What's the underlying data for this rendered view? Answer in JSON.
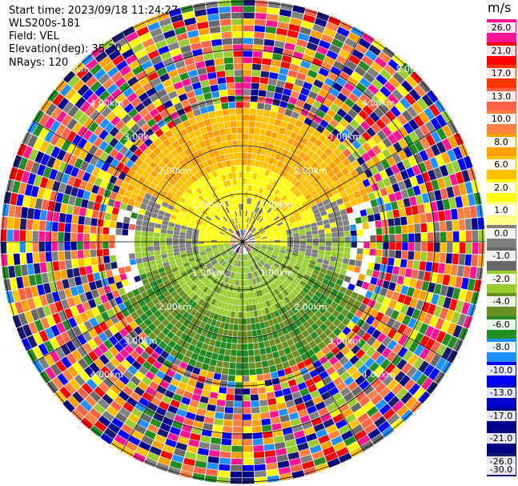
{
  "header": {
    "start_time": "Start time: 2023/09/18 11:24:27",
    "instrument": "WLS200s-181",
    "field": "Field: VEL",
    "elevation": "Elevation(deg): 35.30",
    "nrays": "NRays: 120"
  },
  "colorbar": {
    "unit": "m/s",
    "ticks": [
      "26.0",
      "21.0",
      "17.0",
      "13.0",
      "10.0",
      "8.0",
      "6.0",
      "2.0",
      "1.0",
      "0.0",
      "-1.0",
      "-2.0",
      "-4.0",
      "-6.0",
      "-8.0",
      "-10.0",
      "-13.0",
      "-17.0",
      "-21.0",
      "-26.0",
      "-30.0"
    ],
    "colors": [
      "#ff1493",
      "#ff0000",
      "#ff3600",
      "#ff6347",
      "#ff8040",
      "#ffa000",
      "#ffc000",
      "#ffff00",
      "#ffff88",
      "#808080",
      "#696969",
      "#9acd32",
      "#6b8e23",
      "#228b22",
      "#1e90ff",
      "#0000ff",
      "#0000cd",
      "#00008b",
      "#000080",
      "#191970"
    ]
  },
  "range_labels": [
    "1.00km",
    "1.00km",
    "1.00km",
    "1.00km",
    "2.00km",
    "2.00km",
    "2.00km",
    "2.00km",
    "3.00km",
    "3.00km",
    "3.00km",
    "3.00km",
    "4.00km",
    "4.00km",
    "4.00km",
    "4.00km",
    "5.00km",
    "5.00km"
  ]
}
